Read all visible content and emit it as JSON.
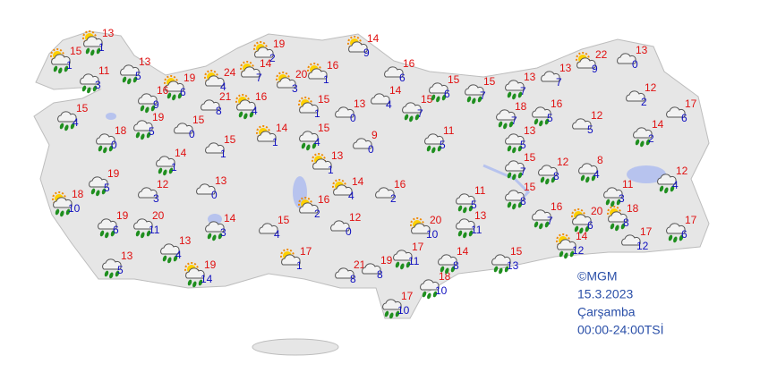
{
  "stations": [
    {
      "max": 15,
      "min": 1
    },
    {
      "max": 13,
      "min": 1
    },
    {
      "max": 13,
      "min": 5
    },
    {
      "max": 11,
      "min": 3
    },
    {
      "max": 19,
      "min": 6
    },
    {
      "max": 16,
      "min": 9
    },
    {
      "max": 15,
      "min": 4
    },
    {
      "max": 19,
      "min": 5
    },
    {
      "max": 15,
      "min": 0
    },
    {
      "max": 18,
      "min": 0
    },
    {
      "max": 19,
      "min": 5
    },
    {
      "max": 18,
      "min": 10
    },
    {
      "max": 12,
      "min": 3
    },
    {
      "max": 13,
      "min": 0
    },
    {
      "max": 14,
      "min": 1
    },
    {
      "max": 15,
      "min": 1
    },
    {
      "max": 19,
      "min": 6
    },
    {
      "max": 20,
      "min": 11
    },
    {
      "max": 14,
      "min": 3
    },
    {
      "max": 13,
      "min": 4
    },
    {
      "max": 13,
      "min": 5
    },
    {
      "max": 19,
      "min": 14
    },
    {
      "max": 15,
      "min": 4
    },
    {
      "max": 17,
      "min": 1
    },
    {
      "max": 21,
      "min": 8
    },
    {
      "max": 19,
      "min": 8
    },
    {
      "max": 17,
      "min": 10
    },
    {
      "max": 18,
      "min": 10
    },
    {
      "max": 17,
      "min": 11
    },
    {
      "max": 14,
      "min": 8
    },
    {
      "max": 15,
      "min": 13
    },
    {
      "max": 13,
      "min": 11
    },
    {
      "max": 20,
      "min": 10
    },
    {
      "max": 12,
      "min": 0
    },
    {
      "max": 16,
      "min": 2
    },
    {
      "max": 14,
      "min": 4
    },
    {
      "max": 16,
      "min": 2
    },
    {
      "max": 13,
      "min": 1
    },
    {
      "max": 9,
      "min": 0
    },
    {
      "max": 15,
      "min": 4
    },
    {
      "max": 14,
      "min": 1
    },
    {
      "max": 15,
      "min": 1
    },
    {
      "max": 13,
      "min": 0
    },
    {
      "max": 14,
      "min": 4
    },
    {
      "max": 15,
      "min": 7
    },
    {
      "max": 11,
      "min": 5
    },
    {
      "max": 16,
      "min": 6
    },
    {
      "max": 15,
      "min": 6
    },
    {
      "max": 15,
      "min": 7
    },
    {
      "max": 13,
      "min": 7
    },
    {
      "max": 13,
      "min": 7
    },
    {
      "max": 22,
      "min": 9
    },
    {
      "max": 13,
      "min": 0
    },
    {
      "max": 12,
      "min": 2
    },
    {
      "max": 17,
      "min": 6
    },
    {
      "max": 14,
      "min": 2
    },
    {
      "max": 12,
      "min": 5
    },
    {
      "max": 16,
      "min": 5
    },
    {
      "max": 18,
      "min": 7
    },
    {
      "max": 13,
      "min": 5
    },
    {
      "max": 15,
      "min": 7
    },
    {
      "max": 12,
      "min": 8
    },
    {
      "max": 8,
      "min": 4
    },
    {
      "max": 12,
      "min": 4
    },
    {
      "max": 11,
      "min": 3
    },
    {
      "max": 15,
      "min": 8
    },
    {
      "max": 11,
      "min": 5
    },
    {
      "max": 16,
      "min": 7
    },
    {
      "max": 20,
      "min": 6
    },
    {
      "max": 18,
      "min": 8
    },
    {
      "max": 14,
      "min": 12
    },
    {
      "max": 17,
      "min": 12
    },
    {
      "max": 17,
      "min": 6
    },
    {
      "max": 24,
      "min": 4
    },
    {
      "max": 14,
      "min": 7
    },
    {
      "max": 19,
      "min": 2
    },
    {
      "max": 20,
      "min": 3
    },
    {
      "max": 16,
      "min": 1
    },
    {
      "max": 14,
      "min": 9
    },
    {
      "max": 21,
      "min": 8
    },
    {
      "max": 16,
      "min": 4
    }
  ],
  "footer": {
    "copyright": "©MGM",
    "date": "15.3.2023",
    "day": "Çarşamba",
    "period": "00:00-24:00TSİ"
  }
}
